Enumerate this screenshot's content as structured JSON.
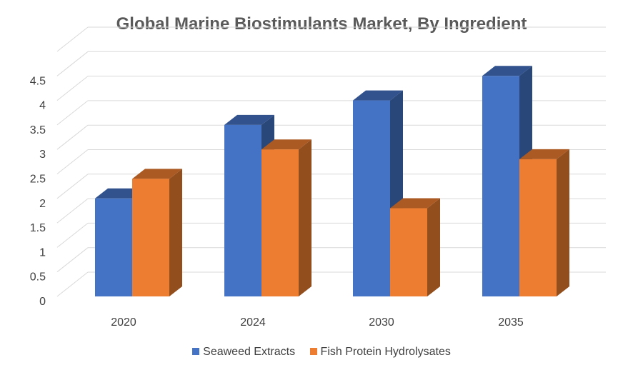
{
  "chart_data": {
    "type": "bar",
    "title": "Global Marine Biostimulants Market, By Ingredient",
    "categories": [
      "2020",
      "2024",
      "2030",
      "2035"
    ],
    "series": [
      {
        "name": "Seaweed Extracts",
        "values": [
          2.0,
          3.5,
          4.0,
          4.5
        ],
        "color": "#4472C4"
      },
      {
        "name": "Fish Protein Hydrolysates",
        "values": [
          2.4,
          3.0,
          1.8,
          2.8
        ],
        "color": "#ED7D31"
      }
    ],
    "yticks": [
      "0",
      "0.5",
      "1",
      "1.5",
      "2",
      "2.5",
      "3",
      "3.5",
      "4",
      "4.5"
    ],
    "ylim": [
      0,
      5
    ],
    "xlabel": "",
    "ylabel": "",
    "legend_position": "bottom"
  }
}
